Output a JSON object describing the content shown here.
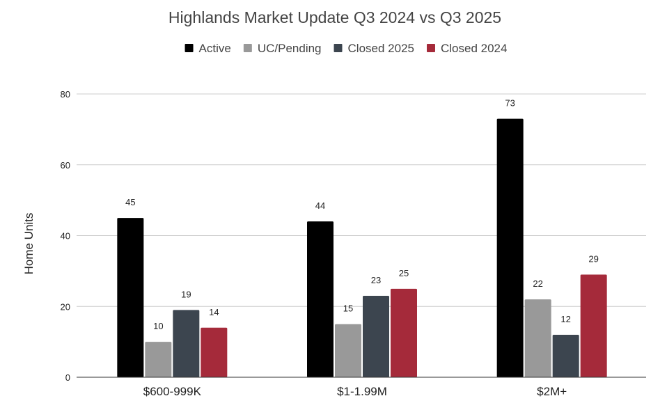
{
  "chart_data": {
    "type": "bar",
    "title": "Highlands Market Update Q3 2024 vs Q3 2025",
    "xlabel": "",
    "ylabel": "Home Units",
    "ylim": [
      0,
      80
    ],
    "yticks": [
      0,
      20,
      40,
      60,
      80
    ],
    "grid": true,
    "legend_position": "top",
    "categories": [
      "$600-999K",
      "$1-1.99M",
      "$2M+"
    ],
    "series": [
      {
        "name": "Active",
        "color": "#000000",
        "values": [
          45,
          44,
          73
        ]
      },
      {
        "name": "UC/Pending",
        "color": "#999999",
        "values": [
          10,
          15,
          22
        ]
      },
      {
        "name": "Closed 2025",
        "color": "#3c454f",
        "values": [
          19,
          23,
          12
        ]
      },
      {
        "name": "Closed 2024",
        "color": "#a52a3a",
        "values": [
          14,
          25,
          29
        ]
      }
    ]
  }
}
